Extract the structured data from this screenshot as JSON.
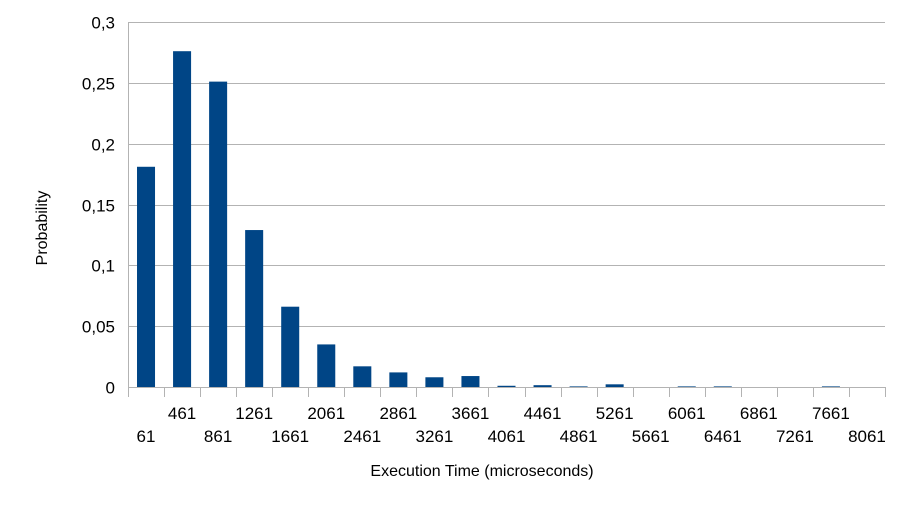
{
  "chart_data": {
    "type": "bar",
    "title": "",
    "xlabel": "Execution Time (microseconds)",
    "ylabel": "Probability",
    "ylim": [
      0,
      0.3
    ],
    "yticks": [
      "0",
      "0,05",
      "0,1",
      "0,15",
      "0,2",
      "0,25",
      "0,3"
    ],
    "ytick_values": [
      0,
      0.05,
      0.1,
      0.15,
      0.2,
      0.25,
      0.3
    ],
    "grid": true,
    "legend": "none",
    "bar_color": "#004586",
    "grid_color": "#b3b3b3",
    "categories": [
      "61",
      "461",
      "861",
      "1261",
      "1661",
      "2061",
      "2461",
      "2861",
      "3261",
      "3661",
      "4061",
      "4461",
      "4861",
      "5261",
      "5661",
      "6061",
      "6461",
      "6861",
      "7261",
      "7661",
      "8061"
    ],
    "values": [
      0.181,
      0.276,
      0.251,
      0.129,
      0.066,
      0.035,
      0.017,
      0.012,
      0.008,
      0.009,
      0.001,
      0.0015,
      0.0005,
      0.0022,
      0,
      0.0005,
      0.0005,
      0,
      0,
      0.0005,
      0
    ]
  }
}
